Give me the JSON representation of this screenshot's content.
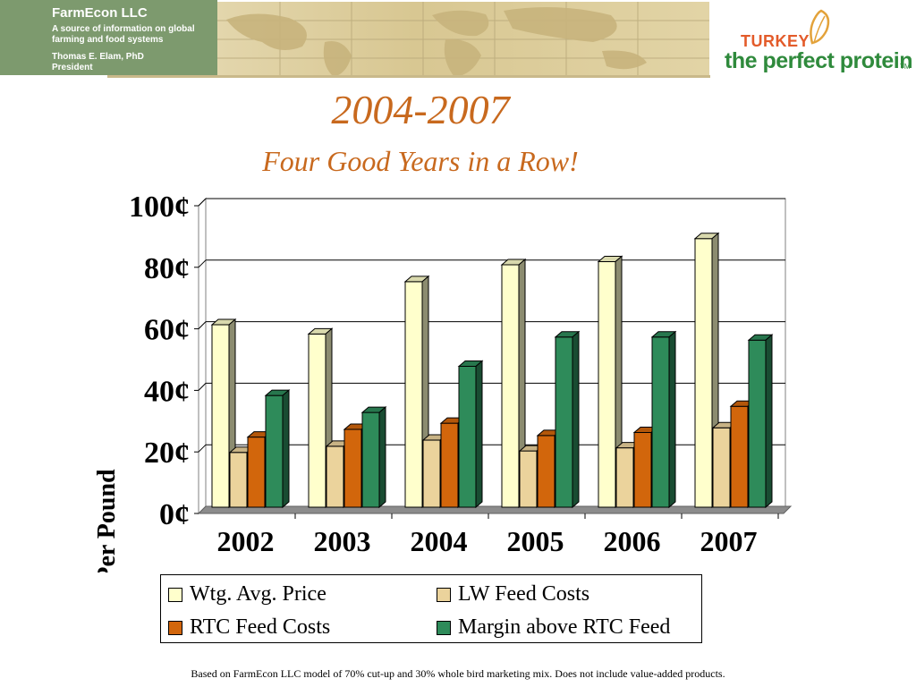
{
  "header": {
    "company": "FarmEcon LLC",
    "tagline": "A source of information on global farming and food systems",
    "author": "Thomas E. Elam, PhD",
    "author_title": "President",
    "logo_top": "TURKEY",
    "logo_main": "the perfect protein",
    "logo_tm": "TM"
  },
  "footnote": "Based on FarmEcon LLC model of 70% cut-up and 30% whole bird marketing mix.  Does not include value-added products.",
  "chart_data": {
    "type": "bar",
    "title": "2004-2007",
    "subtitle": "Four Good Years in a Row!",
    "xlabel": "",
    "ylabel": "¢ Per Pound",
    "categories": [
      "2002",
      "2003",
      "2004",
      "2005",
      "2006",
      "2007"
    ],
    "ylim": [
      0,
      100
    ],
    "yticks": [
      "0¢",
      "20¢",
      "40¢",
      "60¢",
      "80¢",
      "100¢"
    ],
    "grid": true,
    "legend_position": "bottom",
    "series": [
      {
        "name": "Wtg. Avg. Price",
        "color": "#ffffcc",
        "values": [
          59,
          56,
          73,
          78.5,
          79.5,
          87
        ]
      },
      {
        "name": "LW Feed Costs",
        "color": "#ebd39c",
        "values": [
          17.5,
          19.5,
          21.5,
          18,
          19,
          25.5
        ]
      },
      {
        "name": "RTC Feed Costs",
        "color": "#d2660c",
        "values": [
          22.5,
          25,
          27,
          23,
          24,
          32.5
        ]
      },
      {
        "name": "Margin above RTC Feed",
        "color": "#2e8b5a",
        "values": [
          36,
          30.5,
          45.5,
          55,
          55,
          54
        ]
      }
    ]
  }
}
